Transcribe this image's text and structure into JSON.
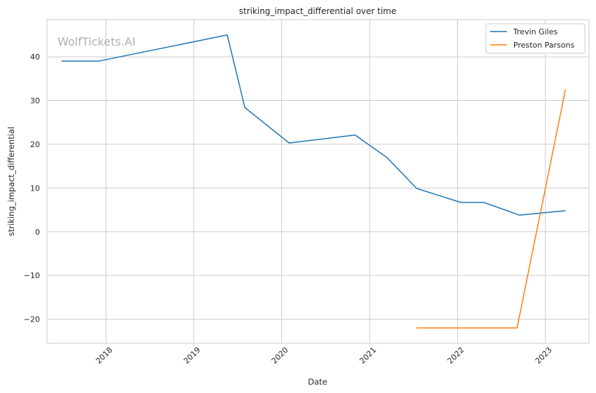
{
  "chart_data": {
    "type": "line",
    "title": "striking_impact_differential over time",
    "xlabel": "Date",
    "ylabel": "striking_impact_differential",
    "watermark": "WolfTickets.AI",
    "x_ticks": [
      "2018",
      "2019",
      "2020",
      "2021",
      "2022",
      "2023"
    ],
    "y_ticks": [
      40,
      30,
      20,
      10,
      0,
      -10,
      -20
    ],
    "y_tick_labels": [
      "40",
      "30",
      "20",
      "10",
      "0",
      "−10",
      "−20"
    ],
    "ylim": [
      -25.5,
      48.5
    ],
    "xlim": [
      "2017-05-01",
      "2023-07-01"
    ],
    "grid": true,
    "legend_position": "top-right",
    "series": [
      {
        "name": "Trevin Giles",
        "color": "#1f77b4",
        "points": [
          {
            "x": "2017-07-01",
            "y": 39.0
          },
          {
            "x": "2017-12-01",
            "y": 39.0
          },
          {
            "x": "2019-05-20",
            "y": 45.0
          },
          {
            "x": "2019-08-01",
            "y": 28.4
          },
          {
            "x": "2020-02-01",
            "y": 20.3
          },
          {
            "x": "2020-11-01",
            "y": 22.1
          },
          {
            "x": "2021-03-15",
            "y": 16.9
          },
          {
            "x": "2021-07-15",
            "y": 9.9
          },
          {
            "x": "2022-01-15",
            "y": 6.7
          },
          {
            "x": "2022-04-20",
            "y": 6.7
          },
          {
            "x": "2022-09-15",
            "y": 3.8
          },
          {
            "x": "2023-03-25",
            "y": 4.8
          }
        ]
      },
      {
        "name": "Preston Parsons",
        "color": "#ff7f0e",
        "points": [
          {
            "x": "2021-07-15",
            "y": -22.0
          },
          {
            "x": "2022-09-05",
            "y": -22.0
          },
          {
            "x": "2023-03-25",
            "y": 32.5
          }
        ]
      }
    ]
  }
}
